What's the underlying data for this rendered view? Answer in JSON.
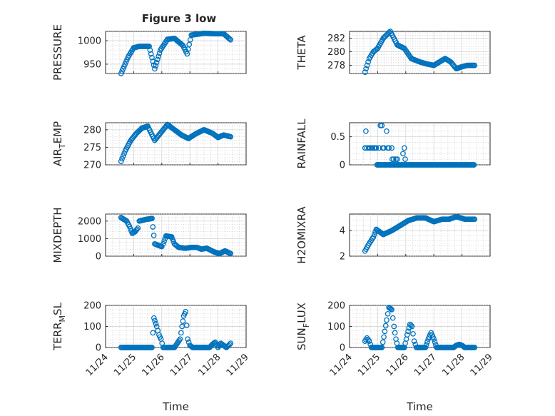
{
  "figure_title": "Figure 3 low",
  "chart_data": [
    {
      "id": "pressure",
      "type": "scatter",
      "ylabel": "PRESSURE",
      "ylabel_main": "PRESSURE",
      "ylabel_sub": "",
      "ylabel_rest": "",
      "xlabel": "",
      "ylim": [
        930,
        1020
      ],
      "yticks": [
        950,
        1000
      ],
      "ytick_labels": [
        "950",
        "1000"
      ],
      "xlim": [
        0,
        5
      ],
      "xtick_labels": [
        "11/24",
        "11/25",
        "11/26",
        "11/27",
        "11/28",
        "11/29"
      ],
      "curve": [
        [
          0.55,
          930
        ],
        [
          0.8,
          965
        ],
        [
          1.0,
          985
        ],
        [
          1.2,
          988
        ],
        [
          1.35,
          988
        ],
        [
          1.55,
          988
        ],
        [
          1.75,
          940
        ],
        [
          1.95,
          980
        ],
        [
          2.2,
          1003
        ],
        [
          2.45,
          1005
        ],
        [
          2.75,
          990
        ],
        [
          2.9,
          972
        ],
        [
          3.05,
          1012
        ],
        [
          3.5,
          1016
        ],
        [
          3.9,
          1015
        ],
        [
          4.2,
          1015
        ],
        [
          4.45,
          1002
        ]
      ]
    },
    {
      "id": "theta",
      "type": "scatter",
      "ylabel": "THETA",
      "ylabel_main": "THETA",
      "ylabel_sub": "",
      "ylabel_rest": "",
      "xlabel": "",
      "ylim": [
        276.8,
        283
      ],
      "yticks": [
        278,
        280,
        282
      ],
      "ytick_labels": [
        "278",
        "280",
        "282"
      ],
      "xlim": [
        0,
        5
      ],
      "xtick_labels": [
        "11/24",
        "11/25",
        "11/26",
        "11/27",
        "11/28",
        "11/29"
      ],
      "curve": [
        [
          0.55,
          277
        ],
        [
          0.7,
          279
        ],
        [
          0.85,
          280
        ],
        [
          1.0,
          280.5
        ],
        [
          1.2,
          282
        ],
        [
          1.45,
          283
        ],
        [
          1.7,
          281
        ],
        [
          1.95,
          280.5
        ],
        [
          2.2,
          279
        ],
        [
          2.5,
          278.5
        ],
        [
          2.75,
          278.2
        ],
        [
          3.0,
          278
        ],
        [
          3.2,
          278.5
        ],
        [
          3.4,
          279
        ],
        [
          3.6,
          278.5
        ],
        [
          3.8,
          277.5
        ],
        [
          4.0,
          277.8
        ],
        [
          4.2,
          278
        ],
        [
          4.45,
          278
        ]
      ]
    },
    {
      "id": "air_temp",
      "type": "scatter",
      "ylabel": "AIR_TEMP",
      "ylabel_main": "AIR",
      "ylabel_sub": "T",
      "ylabel_rest": "EMP",
      "xlabel": "",
      "ylim": [
        270,
        282
      ],
      "yticks": [
        270,
        275,
        280
      ],
      "ytick_labels": [
        "270",
        "275",
        "280"
      ],
      "xlim": [
        0,
        5
      ],
      "xtick_labels": [
        "11/24",
        "11/25",
        "11/26",
        "11/27",
        "11/28",
        "11/29"
      ],
      "curve": [
        [
          0.55,
          271
        ],
        [
          0.7,
          274
        ],
        [
          0.9,
          277
        ],
        [
          1.1,
          279
        ],
        [
          1.3,
          280.5
        ],
        [
          1.5,
          281
        ],
        [
          1.75,
          277
        ],
        [
          1.95,
          279
        ],
        [
          2.2,
          281.5
        ],
        [
          2.45,
          280
        ],
        [
          2.7,
          278.5
        ],
        [
          2.95,
          277.5
        ],
        [
          3.2,
          278.8
        ],
        [
          3.5,
          280
        ],
        [
          3.8,
          279
        ],
        [
          4.0,
          277.8
        ],
        [
          4.2,
          278.5
        ],
        [
          4.45,
          278
        ]
      ]
    },
    {
      "id": "rainfall",
      "type": "scatter",
      "ylabel": "RAINFALL",
      "ylabel_main": "RAINFALL",
      "ylabel_sub": "",
      "ylabel_rest": "",
      "xlabel": "",
      "ylim": [
        0,
        0.75
      ],
      "yticks": [
        0,
        0.5
      ],
      "ytick_labels": [
        "0",
        "0.5"
      ],
      "xlim": [
        0,
        5
      ],
      "xtick_labels": [
        "11/24",
        "11/25",
        "11/26",
        "11/27",
        "11/28",
        "11/29"
      ],
      "points": [
        [
          0.55,
          0.3
        ],
        [
          0.58,
          0.6
        ],
        [
          0.62,
          0.3
        ],
        [
          0.68,
          0.3
        ],
        [
          0.72,
          0.3
        ],
        [
          0.78,
          0.3
        ],
        [
          0.82,
          0.3
        ],
        [
          0.88,
          0.3
        ],
        [
          0.92,
          0.3
        ],
        [
          0.95,
          0.3
        ],
        [
          0.98,
          0
        ],
        [
          1.02,
          0
        ],
        [
          1.05,
          0.3
        ],
        [
          1.1,
          0.7
        ],
        [
          1.15,
          0.7
        ],
        [
          1.18,
          0.3
        ],
        [
          1.22,
          0.3
        ],
        [
          1.27,
          0
        ],
        [
          1.32,
          0.6
        ],
        [
          1.36,
          0.3
        ],
        [
          1.4,
          0.3
        ],
        [
          1.45,
          0
        ],
        [
          1.5,
          0.3
        ],
        [
          1.52,
          0.1
        ],
        [
          1.57,
          0.1
        ],
        [
          1.6,
          0
        ],
        [
          1.65,
          0.1
        ],
        [
          1.7,
          0.1
        ],
        [
          1.72,
          0
        ],
        [
          1.9,
          0.2
        ],
        [
          1.95,
          0.3
        ],
        [
          1.98,
          0.1
        ]
      ],
      "zero_run": [
        1.0,
        4.45
      ]
    },
    {
      "id": "mixdepth",
      "type": "scatter",
      "ylabel": "MIXDEPTH",
      "ylabel_main": "MIXDEPTH",
      "ylabel_sub": "",
      "ylabel_rest": "",
      "xlabel": "",
      "ylim": [
        0,
        2400
      ],
      "yticks": [
        0,
        1000,
        2000
      ],
      "ytick_labels": [
        "0",
        "1000",
        "2000"
      ],
      "xlim": [
        0,
        5
      ],
      "xtick_labels": [
        "11/24",
        "11/25",
        "11/26",
        "11/27",
        "11/28",
        "11/29"
      ],
      "curve": [
        [
          0.55,
          2200
        ],
        [
          0.75,
          2000
        ],
        [
          0.85,
          1700
        ],
        [
          0.95,
          1300
        ],
        [
          1.05,
          1400
        ],
        [
          1.15,
          1600
        ],
        [
          1.2,
          2000
        ],
        [
          1.45,
          2100
        ],
        [
          1.65,
          2150
        ],
        [
          1.75,
          700
        ],
        [
          1.9,
          600
        ],
        [
          2.0,
          550
        ],
        [
          2.05,
          700
        ],
        [
          2.15,
          1150
        ],
        [
          2.35,
          1100
        ],
        [
          2.45,
          700
        ],
        [
          2.6,
          500
        ],
        [
          2.85,
          450
        ],
        [
          3.05,
          500
        ],
        [
          3.25,
          500
        ],
        [
          3.4,
          400
        ],
        [
          3.6,
          450
        ],
        [
          3.85,
          250
        ],
        [
          4.05,
          150
        ],
        [
          4.25,
          300
        ],
        [
          4.45,
          150
        ]
      ]
    },
    {
      "id": "h2omixra",
      "type": "scatter",
      "ylabel": "H2OMIXRA",
      "ylabel_main": "H2OMIXRA",
      "ylabel_sub": "",
      "ylabel_rest": "",
      "xlabel": "",
      "ylim": [
        2,
        5.3
      ],
      "yticks": [
        2,
        4
      ],
      "ytick_labels": [
        "2",
        "4"
      ],
      "xlim": [
        0,
        5
      ],
      "xtick_labels": [
        "11/24",
        "11/25",
        "11/26",
        "11/27",
        "11/28",
        "11/29"
      ],
      "curve": [
        [
          0.55,
          2.4
        ],
        [
          0.7,
          3.0
        ],
        [
          0.85,
          3.5
        ],
        [
          0.95,
          4.1
        ],
        [
          1.2,
          3.7
        ],
        [
          1.5,
          4.0
        ],
        [
          1.8,
          4.4
        ],
        [
          2.1,
          4.8
        ],
        [
          2.4,
          5.0
        ],
        [
          2.7,
          5.0
        ],
        [
          3.0,
          4.7
        ],
        [
          3.3,
          4.9
        ],
        [
          3.55,
          4.9
        ],
        [
          3.8,
          5.1
        ],
        [
          4.1,
          4.9
        ],
        [
          4.45,
          4.9
        ]
      ]
    },
    {
      "id": "terr_msl",
      "type": "scatter",
      "ylabel": "TERR_MSL",
      "ylabel_main": "TERR",
      "ylabel_sub": "M",
      "ylabel_rest": "SL",
      "xlabel": "Time",
      "ylim": [
        0,
        200
      ],
      "yticks": [
        0,
        100,
        200
      ],
      "ytick_labels": [
        "0",
        "100",
        "200"
      ],
      "xlim": [
        0,
        5
      ],
      "xtick_labels": [
        "11/24",
        "11/25",
        "11/26",
        "11/27",
        "11/28",
        "11/29"
      ],
      "curve": [
        [
          0.55,
          0
        ],
        [
          1.65,
          0
        ],
        [
          1.72,
          140
        ],
        [
          1.82,
          100
        ],
        [
          1.9,
          60
        ],
        [
          1.97,
          40
        ],
        [
          2.05,
          0
        ],
        [
          2.45,
          0
        ],
        [
          2.55,
          20
        ],
        [
          2.65,
          40
        ],
        [
          2.72,
          100
        ],
        [
          2.78,
          150
        ],
        [
          2.85,
          170
        ],
        [
          2.92,
          40
        ],
        [
          3.0,
          10
        ],
        [
          3.1,
          0
        ],
        [
          3.7,
          0
        ],
        [
          3.8,
          15
        ],
        [
          3.9,
          25
        ],
        [
          4.0,
          0
        ],
        [
          4.1,
          20
        ],
        [
          4.2,
          10
        ],
        [
          4.3,
          0
        ],
        [
          4.45,
          20
        ]
      ]
    },
    {
      "id": "sun_flux",
      "type": "scatter",
      "ylabel": "SUN_FLUX",
      "ylabel_main": "SUN",
      "ylabel_sub": "F",
      "ylabel_rest": "LUX",
      "xlabel": "Time",
      "ylim": [
        0,
        200
      ],
      "yticks": [
        0,
        100,
        200
      ],
      "ytick_labels": [
        "0",
        "100",
        "200"
      ],
      "xlim": [
        0,
        5
      ],
      "xtick_labels": [
        "11/24",
        "11/25",
        "11/26",
        "11/27",
        "11/28",
        "11/29"
      ],
      "curve": [
        [
          0.55,
          30
        ],
        [
          0.62,
          45
        ],
        [
          0.7,
          30
        ],
        [
          0.78,
          0
        ],
        [
          1.15,
          0
        ],
        [
          1.22,
          50
        ],
        [
          1.32,
          130
        ],
        [
          1.4,
          190
        ],
        [
          1.5,
          180
        ],
        [
          1.58,
          100
        ],
        [
          1.65,
          40
        ],
        [
          1.72,
          0
        ],
        [
          1.95,
          0
        ],
        [
          2.05,
          60
        ],
        [
          2.15,
          110
        ],
        [
          2.22,
          100
        ],
        [
          2.3,
          30
        ],
        [
          2.38,
          0
        ],
        [
          2.7,
          0
        ],
        [
          2.8,
          40
        ],
        [
          2.9,
          70
        ],
        [
          3.0,
          40
        ],
        [
          3.1,
          0
        ],
        [
          3.7,
          0
        ],
        [
          3.8,
          10
        ],
        [
          3.9,
          15
        ],
        [
          4.0,
          10
        ],
        [
          4.1,
          0
        ],
        [
          4.45,
          0
        ]
      ]
    }
  ]
}
